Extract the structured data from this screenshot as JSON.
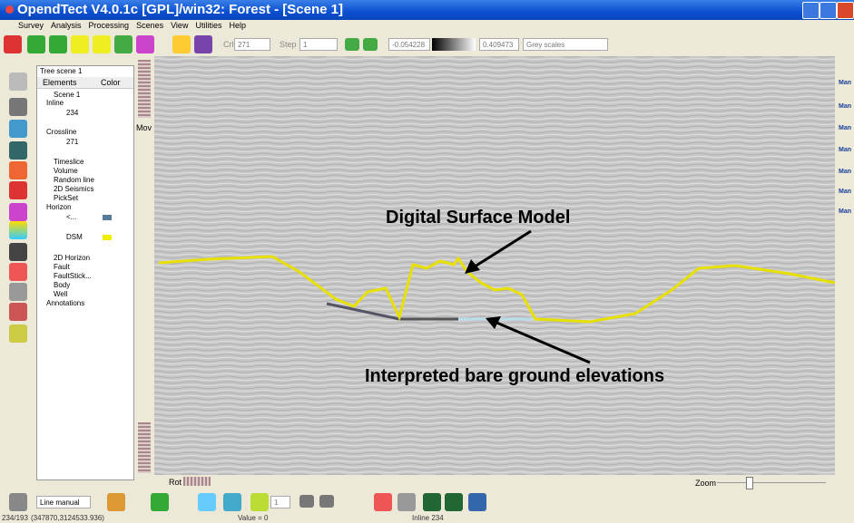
{
  "window": {
    "title": "OpendTect V4.0.1c [GPL]/win32: Forest - [Scene 1]"
  },
  "menu": [
    "Survey",
    "Analysis",
    "Processing",
    "Scenes",
    "View",
    "Utilities",
    "Help"
  ],
  "toolbar": {
    "crl_label": "Crl",
    "crl_value": "271",
    "step_label": "Step",
    "step_value": "1",
    "min_value": "-0.054228",
    "max_value": "0.409473",
    "colortable": "Grey scales"
  },
  "tree": {
    "title": "Tree scene 1",
    "col_elements": "Elements",
    "col_color": "Color",
    "items": [
      "Scene 1",
      "Inline",
      "234",
      "Crossline",
      "271",
      "Timeslice",
      "Volume",
      "Random line",
      "2D Seismics",
      "PickSet",
      "Horizon",
      "<...",
      "DSM",
      "2D Horizon",
      "Fault",
      "FaultStick...",
      "Body",
      "Well",
      "Annotations"
    ]
  },
  "scene": {
    "mov_label": "Mov",
    "rot_label": "Rot",
    "zoom_label": "Zoom",
    "annotation_top": "Digital Surface Model",
    "annotation_bottom": "Interpreted bare ground elevations"
  },
  "right_toolbar": [
    "Man",
    "Man",
    "Man",
    "Man",
    "Man",
    "Man",
    "Man"
  ],
  "bottom_toolbar": {
    "mode": "Line manual",
    "spin": "1"
  },
  "status": {
    "position": "234/193",
    "coords": "(347870,3124533.936)",
    "value": "Value = 0",
    "inline": "Inline  234"
  }
}
